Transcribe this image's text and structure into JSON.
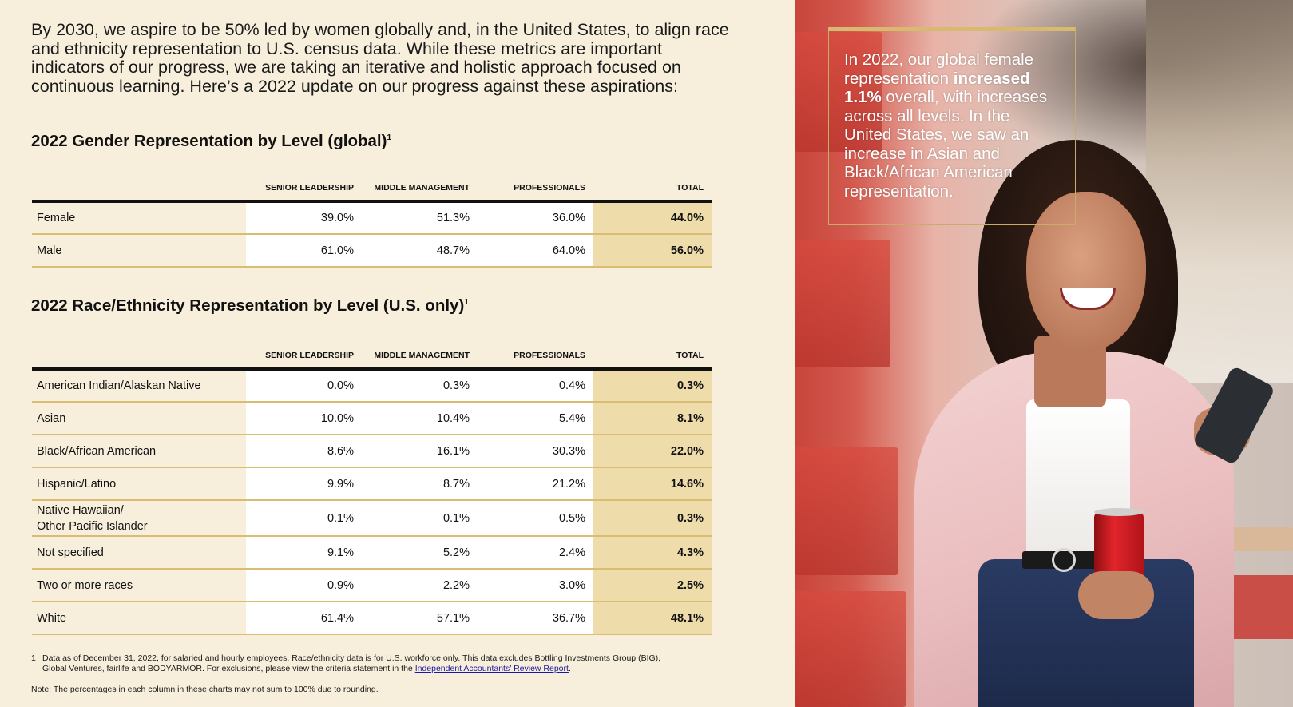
{
  "intro": "By 2030, we aspire to be 50% led by women globally and, in the United States, to align race and ethnicity representation to U.S. census data. While these metrics are important indicators of our progress, we are taking an iterative and holistic approach focused on continuous learning. Here’s a 2022 update on our progress against these aspirations:",
  "gender_table": {
    "title": "2022 Gender Representation by Level (global)",
    "footnote_marker": "1",
    "columns": [
      "SENIOR LEADERSHIP",
      "MIDDLE MANAGEMENT",
      "PROFESSIONALS",
      "TOTAL"
    ],
    "rows": [
      {
        "label": "Female",
        "senior": "39.0%",
        "middle": "51.3%",
        "professionals": "36.0%",
        "total": "44.0%"
      },
      {
        "label": "Male",
        "senior": "61.0%",
        "middle": "48.7%",
        "professionals": "64.0%",
        "total": "56.0%"
      }
    ]
  },
  "race_table": {
    "title": "2022 Race/Ethnicity Representation by Level (U.S. only)",
    "footnote_marker": "1",
    "columns": [
      "SENIOR LEADERSHIP",
      "MIDDLE MANAGEMENT",
      "PROFESSIONALS",
      "TOTAL"
    ],
    "rows": [
      {
        "label": "American Indian/Alaskan Native",
        "senior": "0.0%",
        "middle": "0.3%",
        "professionals": "0.4%",
        "total": "0.3%"
      },
      {
        "label": "Asian",
        "senior": "10.0%",
        "middle": "10.4%",
        "professionals": "5.4%",
        "total": "8.1%"
      },
      {
        "label": "Black/African American",
        "senior": "8.6%",
        "middle": "16.1%",
        "professionals": "30.3%",
        "total": "22.0%"
      },
      {
        "label": "Hispanic/Latino",
        "senior": "9.9%",
        "middle": "8.7%",
        "professionals": "21.2%",
        "total": "14.6%"
      },
      {
        "label": "Native Hawaiian/",
        "label_line2": "Other Pacific Islander",
        "senior": "0.1%",
        "middle": "0.1%",
        "professionals": "0.5%",
        "total": "0.3%"
      },
      {
        "label": "Not specified",
        "senior": "9.1%",
        "middle": "5.2%",
        "professionals": "2.4%",
        "total": "4.3%"
      },
      {
        "label": "Two or more races",
        "senior": "0.9%",
        "middle": "2.2%",
        "professionals": "3.0%",
        "total": "2.5%"
      },
      {
        "label": "White",
        "senior": "61.4%",
        "middle": "57.1%",
        "professionals": "36.7%",
        "total": "48.1%"
      }
    ]
  },
  "footnote": {
    "number": "1",
    "text": "Data as of December 31, 2022, for salaried and hourly employees. Race/ethnicity data is for U.S. workforce only. This data excludes Bottling Investments Group (BIG), Global Ventures, fairlife and BODYARMOR. For exclusions, please view the criteria statement in the",
    "link_text": "Independent Accountants’ Review Report",
    "end": "."
  },
  "note": "Note: The percentages in each column in these charts may not sum to 100% due to rounding.",
  "callout": {
    "before": "In 2022, our global female representation ",
    "bold": "increased 1.1%",
    "after": " overall, with increases across all levels. In the United States, we saw an increase in Asian and Black/African American representation."
  },
  "colors": {
    "background": "#f7efdc",
    "total_column": "#eedcaa",
    "row_divider": "#d8bd72",
    "callout_border": "#d7b970"
  }
}
